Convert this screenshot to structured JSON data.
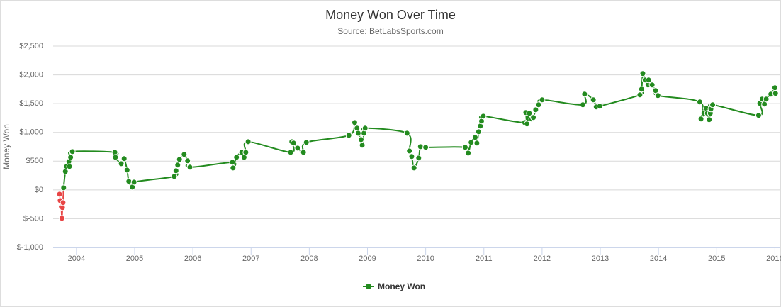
{
  "chart_data": {
    "type": "line",
    "title": "Money Won Over Time",
    "subtitle": "Source: BetLabsSports.com",
    "y_label": "Money Won",
    "x": [
      2003.71,
      2003.72,
      2003.74,
      2003.75,
      2003.76,
      2003.77,
      2003.78,
      2003.81,
      2003.83,
      2003.87,
      2003.88,
      2003.9,
      2003.93,
      2004.66,
      2004.67,
      2004.77,
      2004.82,
      2004.87,
      2004.9,
      2004.96,
      2004.99,
      2005.68,
      2005.71,
      2005.74,
      2005.77,
      2005.85,
      2005.91,
      2005.95,
      2006.68,
      2006.69,
      2006.75,
      2006.84,
      2006.88,
      2006.91,
      2006.95,
      2007.68,
      2007.7,
      2007.73,
      2007.8,
      2007.9,
      2007.95,
      2008.68,
      2008.78,
      2008.82,
      2008.84,
      2008.89,
      2008.91,
      2008.94,
      2008.96,
      2009.68,
      2009.72,
      2009.76,
      2009.8,
      2009.88,
      2009.91,
      2010.0,
      2010.68,
      2010.73,
      2010.78,
      2010.85,
      2010.88,
      2010.91,
      2010.94,
      2010.96,
      2010.99,
      2011.7,
      2011.72,
      2011.74,
      2011.78,
      2011.82,
      2011.85,
      2011.89,
      2011.94,
      2012.0,
      2012.7,
      2012.73,
      2012.88,
      2012.93,
      2012.99,
      2013.68,
      2013.71,
      2013.73,
      2013.77,
      2013.82,
      2013.83,
      2013.89,
      2013.95,
      2013.99,
      2014.71,
      2014.73,
      2014.78,
      2014.82,
      2014.84,
      2014.87,
      2014.89,
      2014.9,
      2014.93,
      2015.72,
      2015.74,
      2015.78,
      2015.82,
      2015.85,
      2015.93,
      2016.0,
      2016.01
    ],
    "series": [
      {
        "name": "Money Won",
        "color": "#238b1f",
        "negative_color": "#e84545",
        "values": [
          -74,
          -185,
          -296,
          -493,
          -308,
          -222,
          37,
          320,
          407,
          493,
          407,
          567,
          666,
          653,
          567,
          456,
          543,
          345,
          148,
          49,
          136,
          234,
          333,
          432,
          530,
          617,
          506,
          395,
          481,
          382,
          567,
          653,
          567,
          653,
          838,
          653,
          838,
          814,
          727,
          653,
          826,
          949,
          1171,
          1073,
          986,
          875,
          777,
          986,
          1073,
          986,
          678,
          580,
          382,
          555,
          752,
          740,
          740,
          641,
          826,
          912,
          814,
          1011,
          1110,
          1196,
          1282,
          1171,
          1344,
          1147,
          1332,
          1233,
          1258,
          1393,
          1480,
          1566,
          1480,
          1665,
          1566,
          1443,
          1455,
          1652,
          1751,
          2022,
          1911,
          1825,
          1911,
          1825,
          1726,
          1640,
          1529,
          1233,
          1332,
          1418,
          1332,
          1221,
          1332,
          1406,
          1480,
          1295,
          1504,
          1579,
          1492,
          1579,
          1665,
          1776,
          1677
        ]
      }
    ],
    "xlim": [
      2003.6,
      2016.08
    ],
    "xticks": [
      2004,
      2005,
      2006,
      2007,
      2008,
      2009,
      2010,
      2011,
      2012,
      2013,
      2014,
      2015,
      2016
    ],
    "ylim": [
      -1000,
      2500
    ],
    "yticks": [
      {
        "value": -1000,
        "label": "$-1,000"
      },
      {
        "value": -500,
        "label": "$-500"
      },
      {
        "value": 0,
        "label": "$0"
      },
      {
        "value": 500,
        "label": "$500"
      },
      {
        "value": 1000,
        "label": "$1,000"
      },
      {
        "value": 1500,
        "label": "$1,500"
      },
      {
        "value": 2000,
        "label": "$2,000"
      },
      {
        "value": 2500,
        "label": "$2,500"
      }
    ],
    "grid": true,
    "smooth": true,
    "legend": "bottom"
  }
}
